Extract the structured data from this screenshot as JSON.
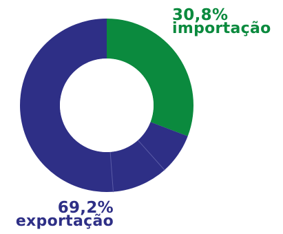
{
  "chart_data": {
    "type": "pie",
    "donut": true,
    "start_angle_deg": 0,
    "direction": "clockwise",
    "legend": "none",
    "segments": [
      {
        "label": "importação",
        "value": 30.8,
        "value_label": "30,8%",
        "color": "#0b8a3e"
      },
      {
        "label": "exportação",
        "value": 69.2,
        "value_label": "69,2%",
        "color": "#2e2f86"
      }
    ],
    "series_divisions": {
      "exportação": [
        7.6,
        10.4,
        51.2
      ]
    },
    "divider_color": "#5a5ba6"
  },
  "labels": {
    "importacao": {
      "pct": "30,8%",
      "name": "importação"
    },
    "exportacao": {
      "pct": "69,2%",
      "name": "exportação"
    }
  }
}
